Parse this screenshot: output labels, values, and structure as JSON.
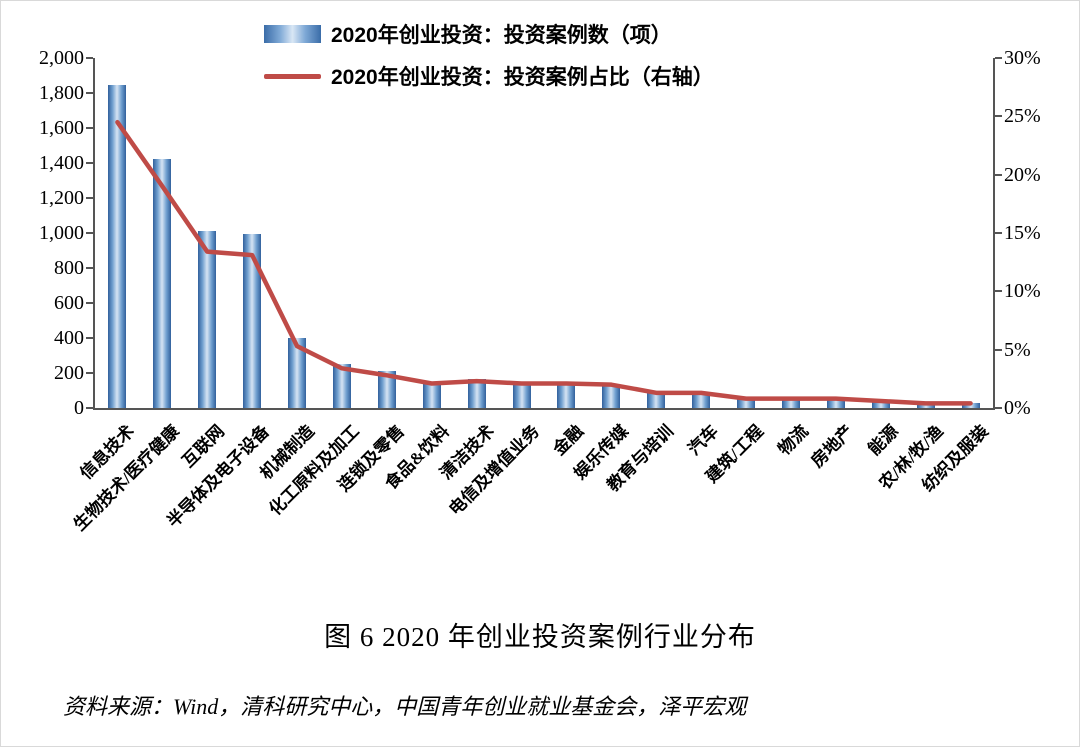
{
  "caption": "图 6 2020 年创业投资案例行业分布",
  "source": "资料来源：Wind，清科研究中心，中国青年创业就业基金会，泽平宏观",
  "colors": {
    "bar_dark": "#31609c",
    "bar_light": "#d6e4f3",
    "line": "#bf4b47",
    "axis": "#555555",
    "text": "#000000"
  },
  "chart_data": {
    "type": "bar",
    "subtype": "bar+line combo, dual axis",
    "grid": false,
    "legend_position": "top",
    "categories": [
      "信息技术",
      "生物技术/医疗健康",
      "互联网",
      "半导体及电子设备",
      "机械制造",
      "化工原料及加工",
      "连锁及零售",
      "食品&饮料",
      "清洁技术",
      "电信及增值业务",
      "金融",
      "娱乐传媒",
      "教育与培训",
      "汽车",
      "建筑/工程",
      "物流",
      "房地产",
      "能源",
      "农/林/牧/渔",
      "纺织及服装"
    ],
    "series": [
      {
        "name": "2020年创业投资：投资案例数（项）",
        "type": "bar",
        "axis": "left",
        "values": [
          1845,
          1425,
          1010,
          995,
          400,
          250,
          210,
          150,
          165,
          150,
          150,
          140,
          90,
          90,
          50,
          50,
          50,
          40,
          25,
          30
        ]
      },
      {
        "name": "2020年创业投资：投资案例占比（右轴）",
        "type": "line",
        "axis": "right",
        "values": [
          24.5,
          19.0,
          13.4,
          13.1,
          5.3,
          3.4,
          2.8,
          2.1,
          2.3,
          2.1,
          2.1,
          2.0,
          1.3,
          1.3,
          0.8,
          0.8,
          0.8,
          0.6,
          0.4,
          0.4
        ]
      }
    ],
    "left_axis": {
      "min": 0,
      "max": 2000,
      "step": 200,
      "tick_labels": [
        "0",
        "200",
        "400",
        "600",
        "800",
        "1,000",
        "1,200",
        "1,400",
        "1,600",
        "1,800",
        "2,000"
      ]
    },
    "right_axis": {
      "min": 0,
      "max": 30,
      "step": 5,
      "tick_labels": [
        "0%",
        "5%",
        "10%",
        "15%",
        "20%",
        "25%",
        "30%"
      ]
    }
  }
}
